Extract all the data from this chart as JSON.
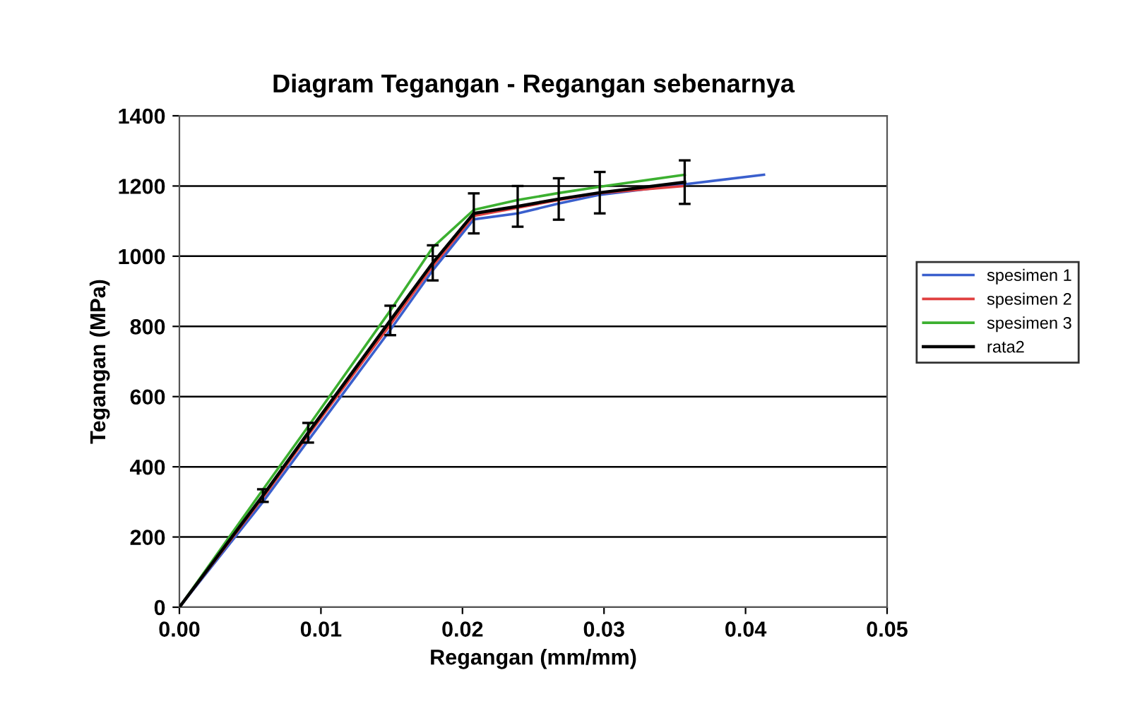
{
  "chart_data": {
    "type": "line",
    "title": "Diagram Tegangan - Regangan sebenarnya",
    "xlabel": "Regangan (mm/mm)",
    "ylabel": "Tegangan (MPa)",
    "xlim": [
      0,
      0.05
    ],
    "xticks": [
      {
        "value": 0,
        "label": "0.00"
      },
      {
        "value": 0.01,
        "label": "0.01"
      },
      {
        "value": 0.02,
        "label": "0.02"
      },
      {
        "value": 0.03,
        "label": "0.03"
      },
      {
        "value": 0.04,
        "label": "0.04"
      },
      {
        "value": 0.05,
        "label": "0.05"
      }
    ],
    "ylim": [
      0,
      1400
    ],
    "yticks": [
      0,
      200,
      400,
      600,
      800,
      1000,
      1200,
      1400
    ],
    "grid": "y",
    "legend": "right",
    "marker": "none",
    "line_style": "solid",
    "series": [
      {
        "name": "spesimen 1",
        "color": "#3a5fcd",
        "x": [
          0,
          0.0059,
          0.0091,
          0.0149,
          0.0179,
          0.0208,
          0.0239,
          0.0268,
          0.0297,
          0.0357,
          0.0413
        ],
        "values": [
          0,
          300,
          475,
          790,
          960,
          1105,
          1122,
          1150,
          1175,
          1205,
          1232
        ]
      },
      {
        "name": "spesimen 2",
        "color": "#e04040",
        "x": [
          0,
          0.0059,
          0.0091,
          0.0149,
          0.0179,
          0.0208,
          0.0239,
          0.0268,
          0.0297,
          0.0357
        ],
        "values": [
          0,
          312,
          490,
          805,
          972,
          1115,
          1138,
          1160,
          1180,
          1200
        ]
      },
      {
        "name": "spesimen 3",
        "color": "#3cb030",
        "x": [
          0,
          0.0059,
          0.0091,
          0.0149,
          0.0179,
          0.0208,
          0.0239,
          0.0268,
          0.0297,
          0.0357
        ],
        "values": [
          0,
          335,
          515,
          845,
          1025,
          1132,
          1160,
          1180,
          1198,
          1232
        ]
      },
      {
        "name": "rata2",
        "color": "#000000",
        "x": [
          0,
          0.0059,
          0.0091,
          0.0149,
          0.0179,
          0.0208,
          0.0239,
          0.0268,
          0.0297,
          0.0357
        ],
        "values": [
          0,
          318,
          497,
          817,
          981,
          1122,
          1142,
          1163,
          1181,
          1211
        ],
        "errors": [
          null,
          18,
          28,
          42,
          50,
          57,
          58,
          59,
          59,
          62
        ]
      }
    ]
  }
}
